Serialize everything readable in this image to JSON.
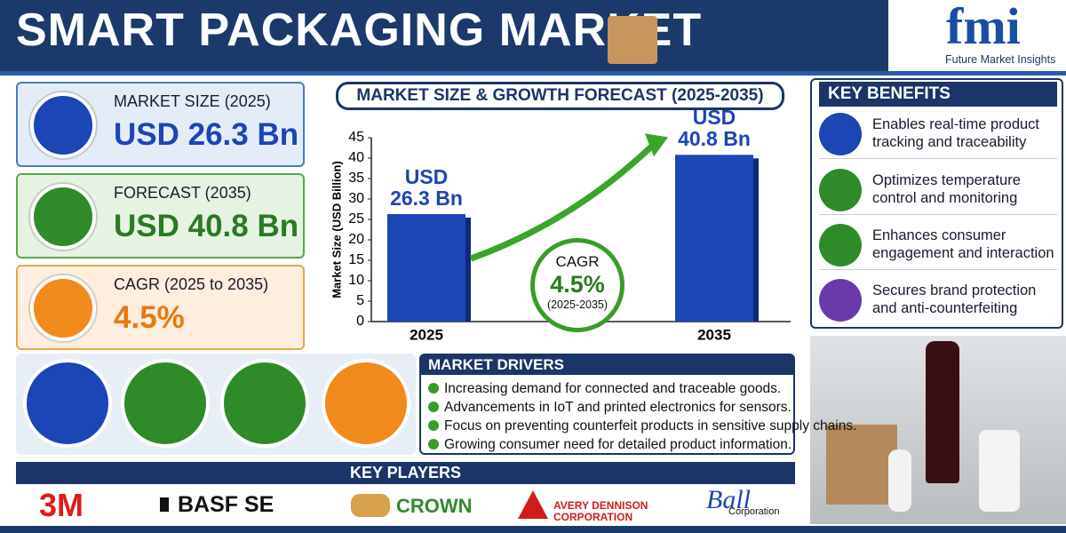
{
  "header": {
    "title": "SMART PACKAGING MARKET",
    "logo": "fmi",
    "logo_subtitle": "Future Market Insights"
  },
  "stats": [
    {
      "label": "MARKET SIZE (2025)",
      "value": "USD 26.3 Bn"
    },
    {
      "label": "FORECAST (2035)",
      "value": "USD 40.8 Bn"
    },
    {
      "label": "CAGR (2025 to 2035)",
      "value": "4.5%"
    }
  ],
  "chart_data": {
    "type": "bar",
    "title": "MARKET SIZE & GROWTH FORECAST (2025-2035)",
    "y_label": "Market Size (USD Billion)",
    "categories": [
      "2025",
      "2035"
    ],
    "values": [
      26.3,
      40.8
    ],
    "value_labels": [
      "USD 26.3 Bn",
      "USD 40.8 Bn"
    ],
    "color": "#1c45b5",
    "ylim": [
      0,
      45
    ],
    "yticks": [
      0,
      5,
      10,
      15,
      20,
      25,
      30,
      35,
      40,
      45
    ],
    "annotation": {
      "label": "CAGR",
      "value": "4.5%",
      "period": "(2025-2035)"
    }
  },
  "benefits": {
    "title": "KEY BENEFITS",
    "items": [
      "Enables real-time product tracking and traceability",
      "Optimizes temperature control and monitoring",
      "Enhances consumer engagement and interaction",
      "Secures brand protection and anti-counterfeiting"
    ]
  },
  "drivers": {
    "title": "MARKET DRIVERS",
    "items": [
      "Increasing demand for connected and traceable goods.",
      "Advancements in IoT and printed electronics for sensors.",
      "Focus on preventing counterfeit products in sensitive supply chains.",
      "Growing consumer need for detailed product information."
    ]
  },
  "players": {
    "title": "KEY PLAYERS",
    "items": [
      {
        "name": "3M"
      },
      {
        "name": "BASF SE"
      },
      {
        "name": "CROWN"
      },
      {
        "name": "AVERY DENNISON",
        "sub": "CORPORATION"
      },
      {
        "name": "Ball",
        "sub": "Corporation"
      }
    ]
  }
}
